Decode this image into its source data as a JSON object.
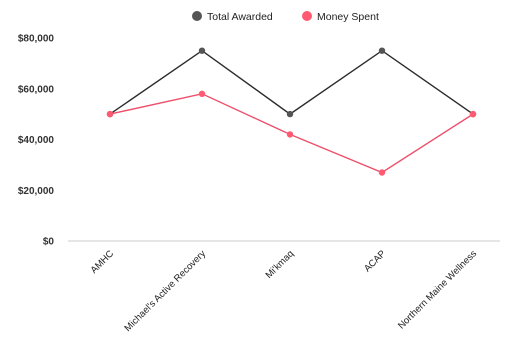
{
  "chart_data": {
    "type": "line",
    "categories": [
      "AMHC",
      "Michael's Active Recovery",
      "Mi'kmaq",
      "ACAP",
      "Northern Maine Wellness"
    ],
    "series": [
      {
        "name": "Total Awarded",
        "values": [
          50000,
          75000,
          50000,
          75000,
          50000
        ],
        "color": "#2b2b2b",
        "marker_color": "#555555"
      },
      {
        "name": "Money Spent",
        "values": [
          50000,
          58000,
          42000,
          27000,
          50000
        ],
        "color": "#ee4f6b",
        "marker_color": "#ff5a72"
      }
    ],
    "ylim": [
      0,
      80000
    ],
    "yticks": [
      0,
      20000,
      40000,
      60000,
      80000
    ],
    "ytick_labels": [
      "$0",
      "$20,000",
      "$40,000",
      "$60,000",
      "$80,000"
    ],
    "legend_position": "top-center",
    "grid": false
  }
}
